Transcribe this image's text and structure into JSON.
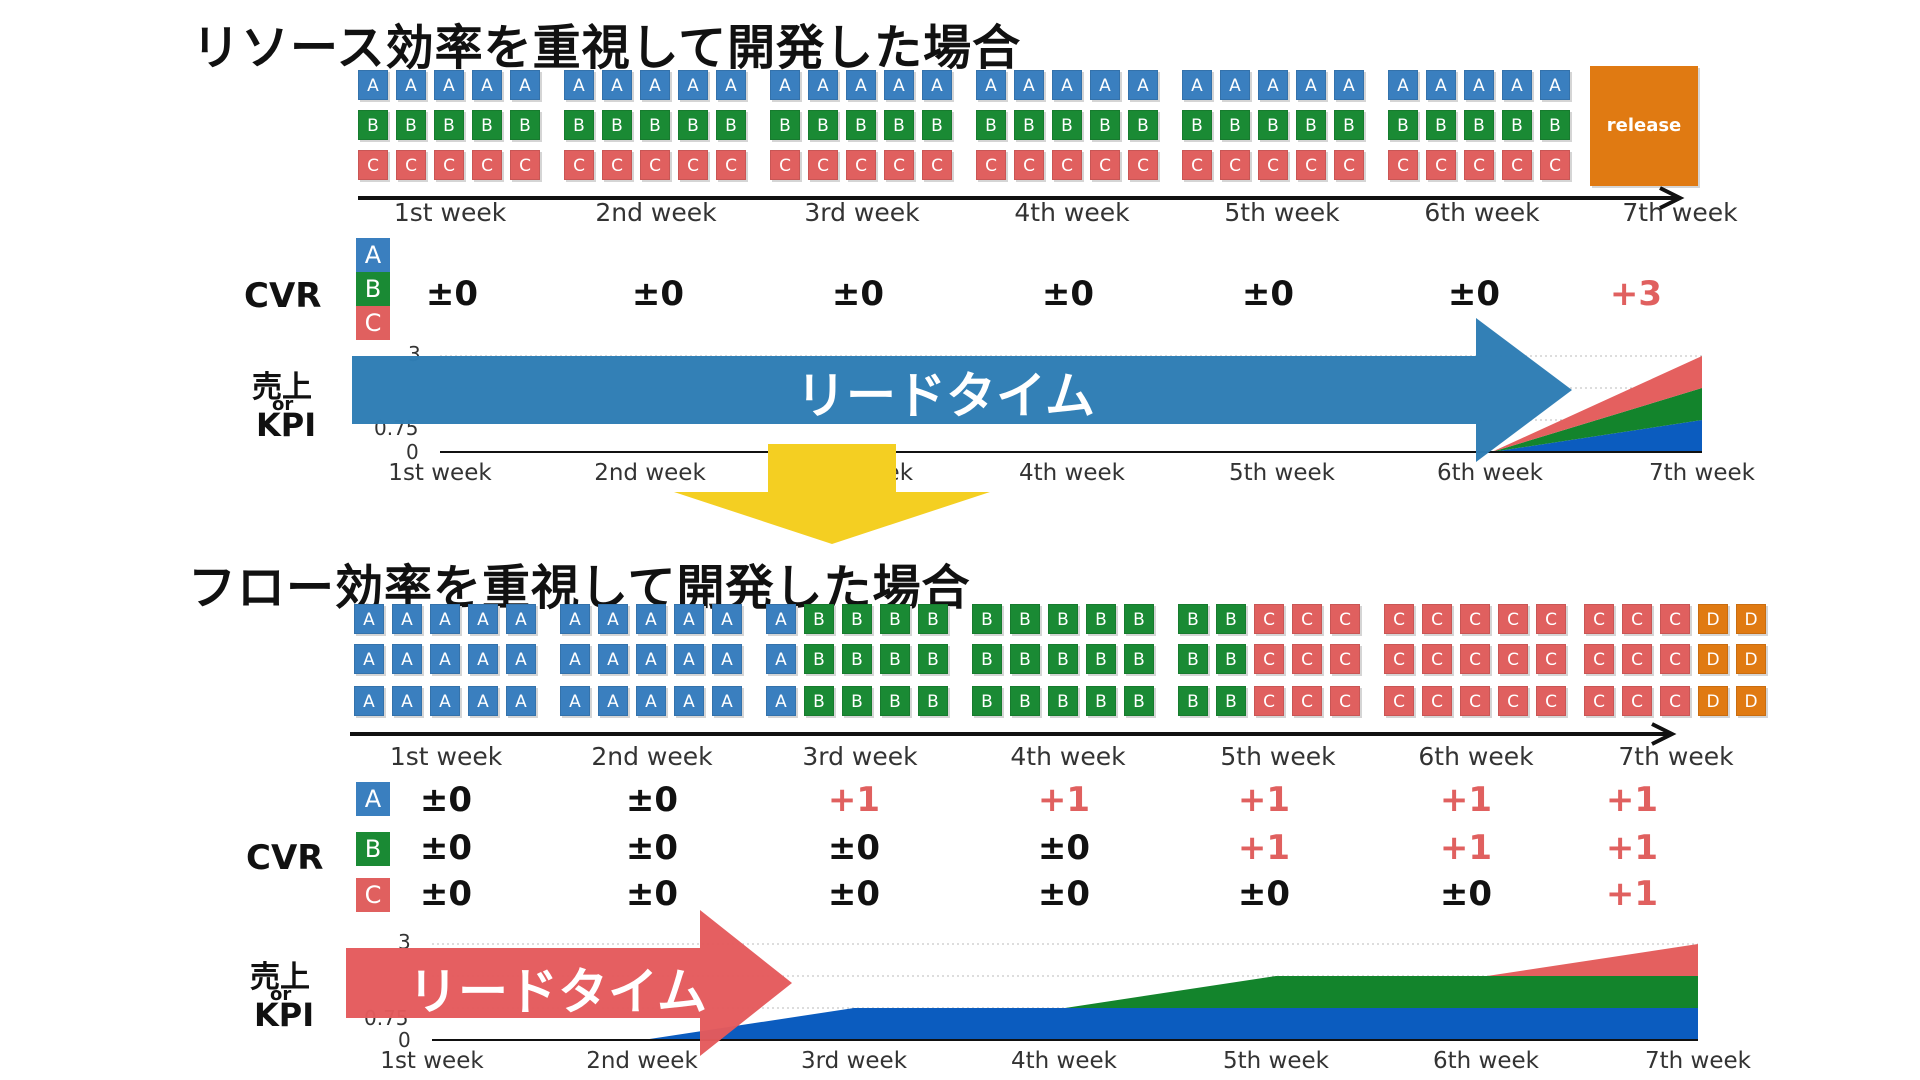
{
  "top": {
    "title": "リソース効率を重視して開発した場合",
    "weeks": [
      "1st week",
      "2nd week",
      "3rd week",
      "4th week",
      "5th week",
      "6th week",
      "7th week"
    ],
    "release_label": "release",
    "cvr_label": "CVR",
    "legend": [
      "A",
      "B",
      "C"
    ],
    "cvr_values": [
      "±0",
      "±0",
      "±0",
      "±0",
      "±0",
      "±0",
      "+3"
    ],
    "kpi_label_top": "売上",
    "kpi_label_or": "or",
    "kpi_label_bottom": "KPI",
    "y_ticks": [
      "3",
      "0.75",
      "0"
    ],
    "leadtime_label": "リードタイム"
  },
  "bottom": {
    "title": "フロー効率を重視して開発した場合",
    "weeks": [
      "1st week",
      "2nd week",
      "3rd week",
      "4th week",
      "5th week",
      "6th week",
      "7th week"
    ],
    "cvr_label": "CVR",
    "legend": [
      "A",
      "B",
      "C"
    ],
    "cvr_rows": [
      [
        "±0",
        "±0",
        "+1",
        "+1",
        "+1",
        "+1",
        "+1"
      ],
      [
        "±0",
        "±0",
        "±0",
        "±0",
        "+1",
        "+1",
        "+1"
      ],
      [
        "±0",
        "±0",
        "±0",
        "±0",
        "±0",
        "±0",
        "+1"
      ]
    ],
    "kpi_label_top": "売上",
    "kpi_label_or": "or",
    "kpi_label_bottom": "KPI",
    "y_ticks": [
      "3",
      "0.75",
      "0"
    ],
    "leadtime_label": "リードタイム"
  },
  "top_grid": [
    [
      "AAAAA",
      "AAAAA",
      "AAAAA",
      "AAAAA",
      "AAAAA",
      "AAAAA"
    ],
    [
      "BBBBB",
      "BBBBB",
      "BBBBB",
      "BBBBB",
      "BBBBB",
      "BBBBB"
    ],
    [
      "CCCCC",
      "CCCCC",
      "CCCCC",
      "CCCCC",
      "CCCCC",
      "CCCCC"
    ]
  ],
  "bottom_grid": [
    [
      "AAAAA",
      "AAAAA",
      "ABBBB",
      "BBBBB",
      "BBCCC",
      "CCCCC",
      "CCCDD"
    ],
    [
      "AAAAA",
      "AAAAA",
      "ABBBB",
      "BBBBB",
      "BBCCC",
      "CCCCC",
      "CCCDD"
    ],
    [
      "AAAAA",
      "AAAAA",
      "ABBBB",
      "BBBBB",
      "BBCCC",
      "CCCCC",
      "CCCDD"
    ]
  ],
  "chart_data": [
    {
      "type": "area",
      "x": [
        "1st week",
        "2nd week",
        "3rd week",
        "4th week",
        "5th week",
        "6th week",
        "7th week"
      ],
      "series": [
        {
          "name": "A",
          "values": [
            0,
            0,
            0,
            0,
            0,
            0,
            1
          ]
        },
        {
          "name": "B",
          "values": [
            0,
            0,
            0,
            0,
            0,
            0,
            1
          ]
        },
        {
          "name": "C",
          "values": [
            0,
            0,
            0,
            0,
            0,
            0,
            1
          ]
        }
      ],
      "ylim": [
        0,
        3
      ],
      "stacked": true
    },
    {
      "type": "area",
      "x": [
        "1st week",
        "2nd week",
        "3rd week",
        "4th week",
        "5th week",
        "6th week",
        "7th week"
      ],
      "series": [
        {
          "name": "A",
          "values": [
            0,
            0,
            1,
            1,
            1,
            1,
            1
          ]
        },
        {
          "name": "B",
          "values": [
            0,
            0,
            0,
            0,
            1,
            1,
            1
          ]
        },
        {
          "name": "C",
          "values": [
            0,
            0,
            0,
            0,
            0,
            0,
            1
          ]
        }
      ],
      "ylim": [
        0,
        3
      ],
      "stacked": true
    }
  ],
  "colors": {
    "A": "#3a7fbf",
    "B": "#1a8a34",
    "C": "#e0605f",
    "D": "#e07a12",
    "chartA": "#0b5cbf",
    "chartB": "#13842c",
    "chartC": "#e4605f",
    "lead_top": "#2f7db5",
    "lead_bottom": "#e45a5c",
    "down_arrow": "#f4cf22"
  }
}
